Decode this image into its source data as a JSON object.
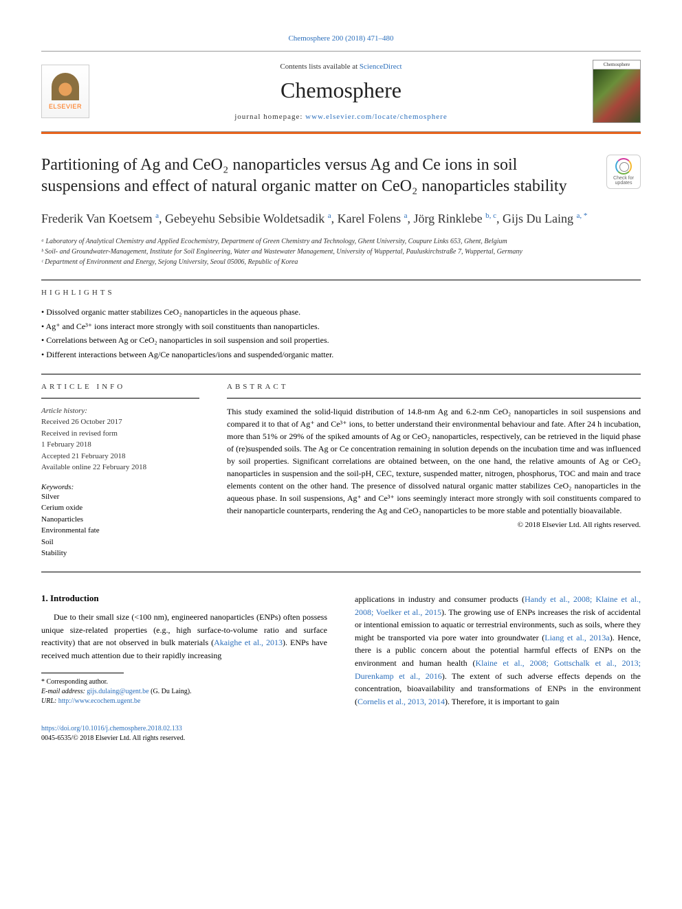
{
  "citation": "Chemosphere 200 (2018) 471–480",
  "header": {
    "contents_prefix": "Contents lists available at ",
    "contents_link": "ScienceDirect",
    "journal": "Chemosphere",
    "homepage_prefix": "journal homepage: ",
    "homepage_url": "www.elsevier.com/locate/chemosphere",
    "elsevier_label": "ELSEVIER",
    "cover_small_text": "Chemosphere",
    "check_label": "Check for updates"
  },
  "title": "Partitioning of Ag and CeO₂ nanoparticles versus Ag and Ce ions in soil suspensions and effect of natural organic matter on CeO₂ nanoparticles stability",
  "authors_html": "Frederik Van Koetsem <sup>a</sup>, Gebeyehu Sebsibie Woldetsadik <sup>a</sup>, Karel Folens <sup>a</sup>, Jörg Rinklebe <sup>b, c</sup>, Gijs Du Laing <sup>a, *</sup>",
  "affiliations": [
    "ᵃ Laboratory of Analytical Chemistry and Applied Ecochemistry, Department of Green Chemistry and Technology, Ghent University, Coupure Links 653, Ghent, Belgium",
    "ᵇ Soil- and Groundwater-Management, Institute for Soil Engineering, Water and Wastewater Management, University of Wuppertal, Pauluskirchstraße 7, Wuppertal, Germany",
    "ᶜ Department of Environment and Energy, Sejong University, Seoul 05006, Republic of Korea"
  ],
  "highlights_label": "HIGHLIGHTS",
  "highlights": [
    "• Dissolved organic matter stabilizes CeO₂ nanoparticles in the aqueous phase.",
    "• Ag⁺ and Ce³⁺ ions interact more strongly with soil constituents than nanoparticles.",
    "• Correlations between Ag or CeO₂ nanoparticles in soil suspension and soil properties.",
    "• Different interactions between Ag/Ce nanoparticles/ions and suspended/organic matter."
  ],
  "article_info_label": "ARTICLE INFO",
  "abstract_label": "ABSTRACT",
  "history": {
    "label": "Article history:",
    "lines": [
      "Received 26 October 2017",
      "Received in revised form",
      "1 February 2018",
      "Accepted 21 February 2018",
      "Available online 22 February 2018"
    ]
  },
  "keywords_label": "Keywords:",
  "keywords": [
    "Silver",
    "Cerium oxide",
    "Nanoparticles",
    "Environmental fate",
    "Soil",
    "Stability"
  ],
  "abstract": "This study examined the solid-liquid distribution of 14.8-nm Ag and 6.2-nm CeO₂ nanoparticles in soil suspensions and compared it to that of Ag⁺ and Ce³⁺ ions, to better understand their environmental behaviour and fate. After 24 h incubation, more than 51% or 29% of the spiked amounts of Ag or CeO₂ nanoparticles, respectively, can be retrieved in the liquid phase of (re)suspended soils. The Ag or Ce concentration remaining in solution depends on the incubation time and was influenced by soil properties. Significant correlations are obtained between, on the one hand, the relative amounts of Ag or CeO₂ nanoparticles in suspension and the soil-pH, CEC, texture, suspended matter, nitrogen, phosphorus, TOC and main and trace elements content on the other hand. The presence of dissolved natural organic matter stabilizes CeO₂ nanoparticles in the aqueous phase. In soil suspensions, Ag⁺ and Ce³⁺ ions seemingly interact more strongly with soil constituents compared to their nanoparticle counterparts, rendering the Ag and CeO₂ nanoparticles to be more stable and potentially bioavailable.",
  "copyright": "© 2018 Elsevier Ltd. All rights reserved.",
  "section1_head": "1. Introduction",
  "body_left": "Due to their small size (<100 nm), engineered nanoparticles (ENPs) often possess unique size-related properties (e.g., high surface-to-volume ratio and surface reactivity) that are not observed in bulk materials (Akaighe et al., 2013). ENPs have received much attention due to their rapidly increasing",
  "body_right": "applications in industry and consumer products (Handy et al., 2008; Klaine et al., 2008; Voelker et al., 2015). The growing use of ENPs increases the risk of accidental or intentional emission to aquatic or terrestrial environments, such as soils, where they might be transported via pore water into groundwater (Liang et al., 2013a). Hence, there is a public concern about the potential harmful effects of ENPs on the environment and human health (Klaine et al., 2008; Gottschalk et al., 2013; Durenkamp et al., 2016). The extent of such adverse effects depends on the concentration, bioavailability and transformations of ENPs in the environment (Cornelis et al., 2013, 2014). Therefore, it is important to gain",
  "footnote": {
    "corr": "* Corresponding author.",
    "email_label": "E-mail address: ",
    "email": "gijs.dulaing@ugent.be",
    "email_paren": " (G. Du Laing).",
    "url_label": "URL: ",
    "url": "http://www.ecochem.ugent.be"
  },
  "footer": {
    "doi": "https://doi.org/10.1016/j.chemosphere.2018.02.133",
    "issn_line": "0045-6535/© 2018 Elsevier Ltd. All rights reserved."
  },
  "colors": {
    "link": "#2a6ebb",
    "orange_rule": "#e8631c"
  }
}
